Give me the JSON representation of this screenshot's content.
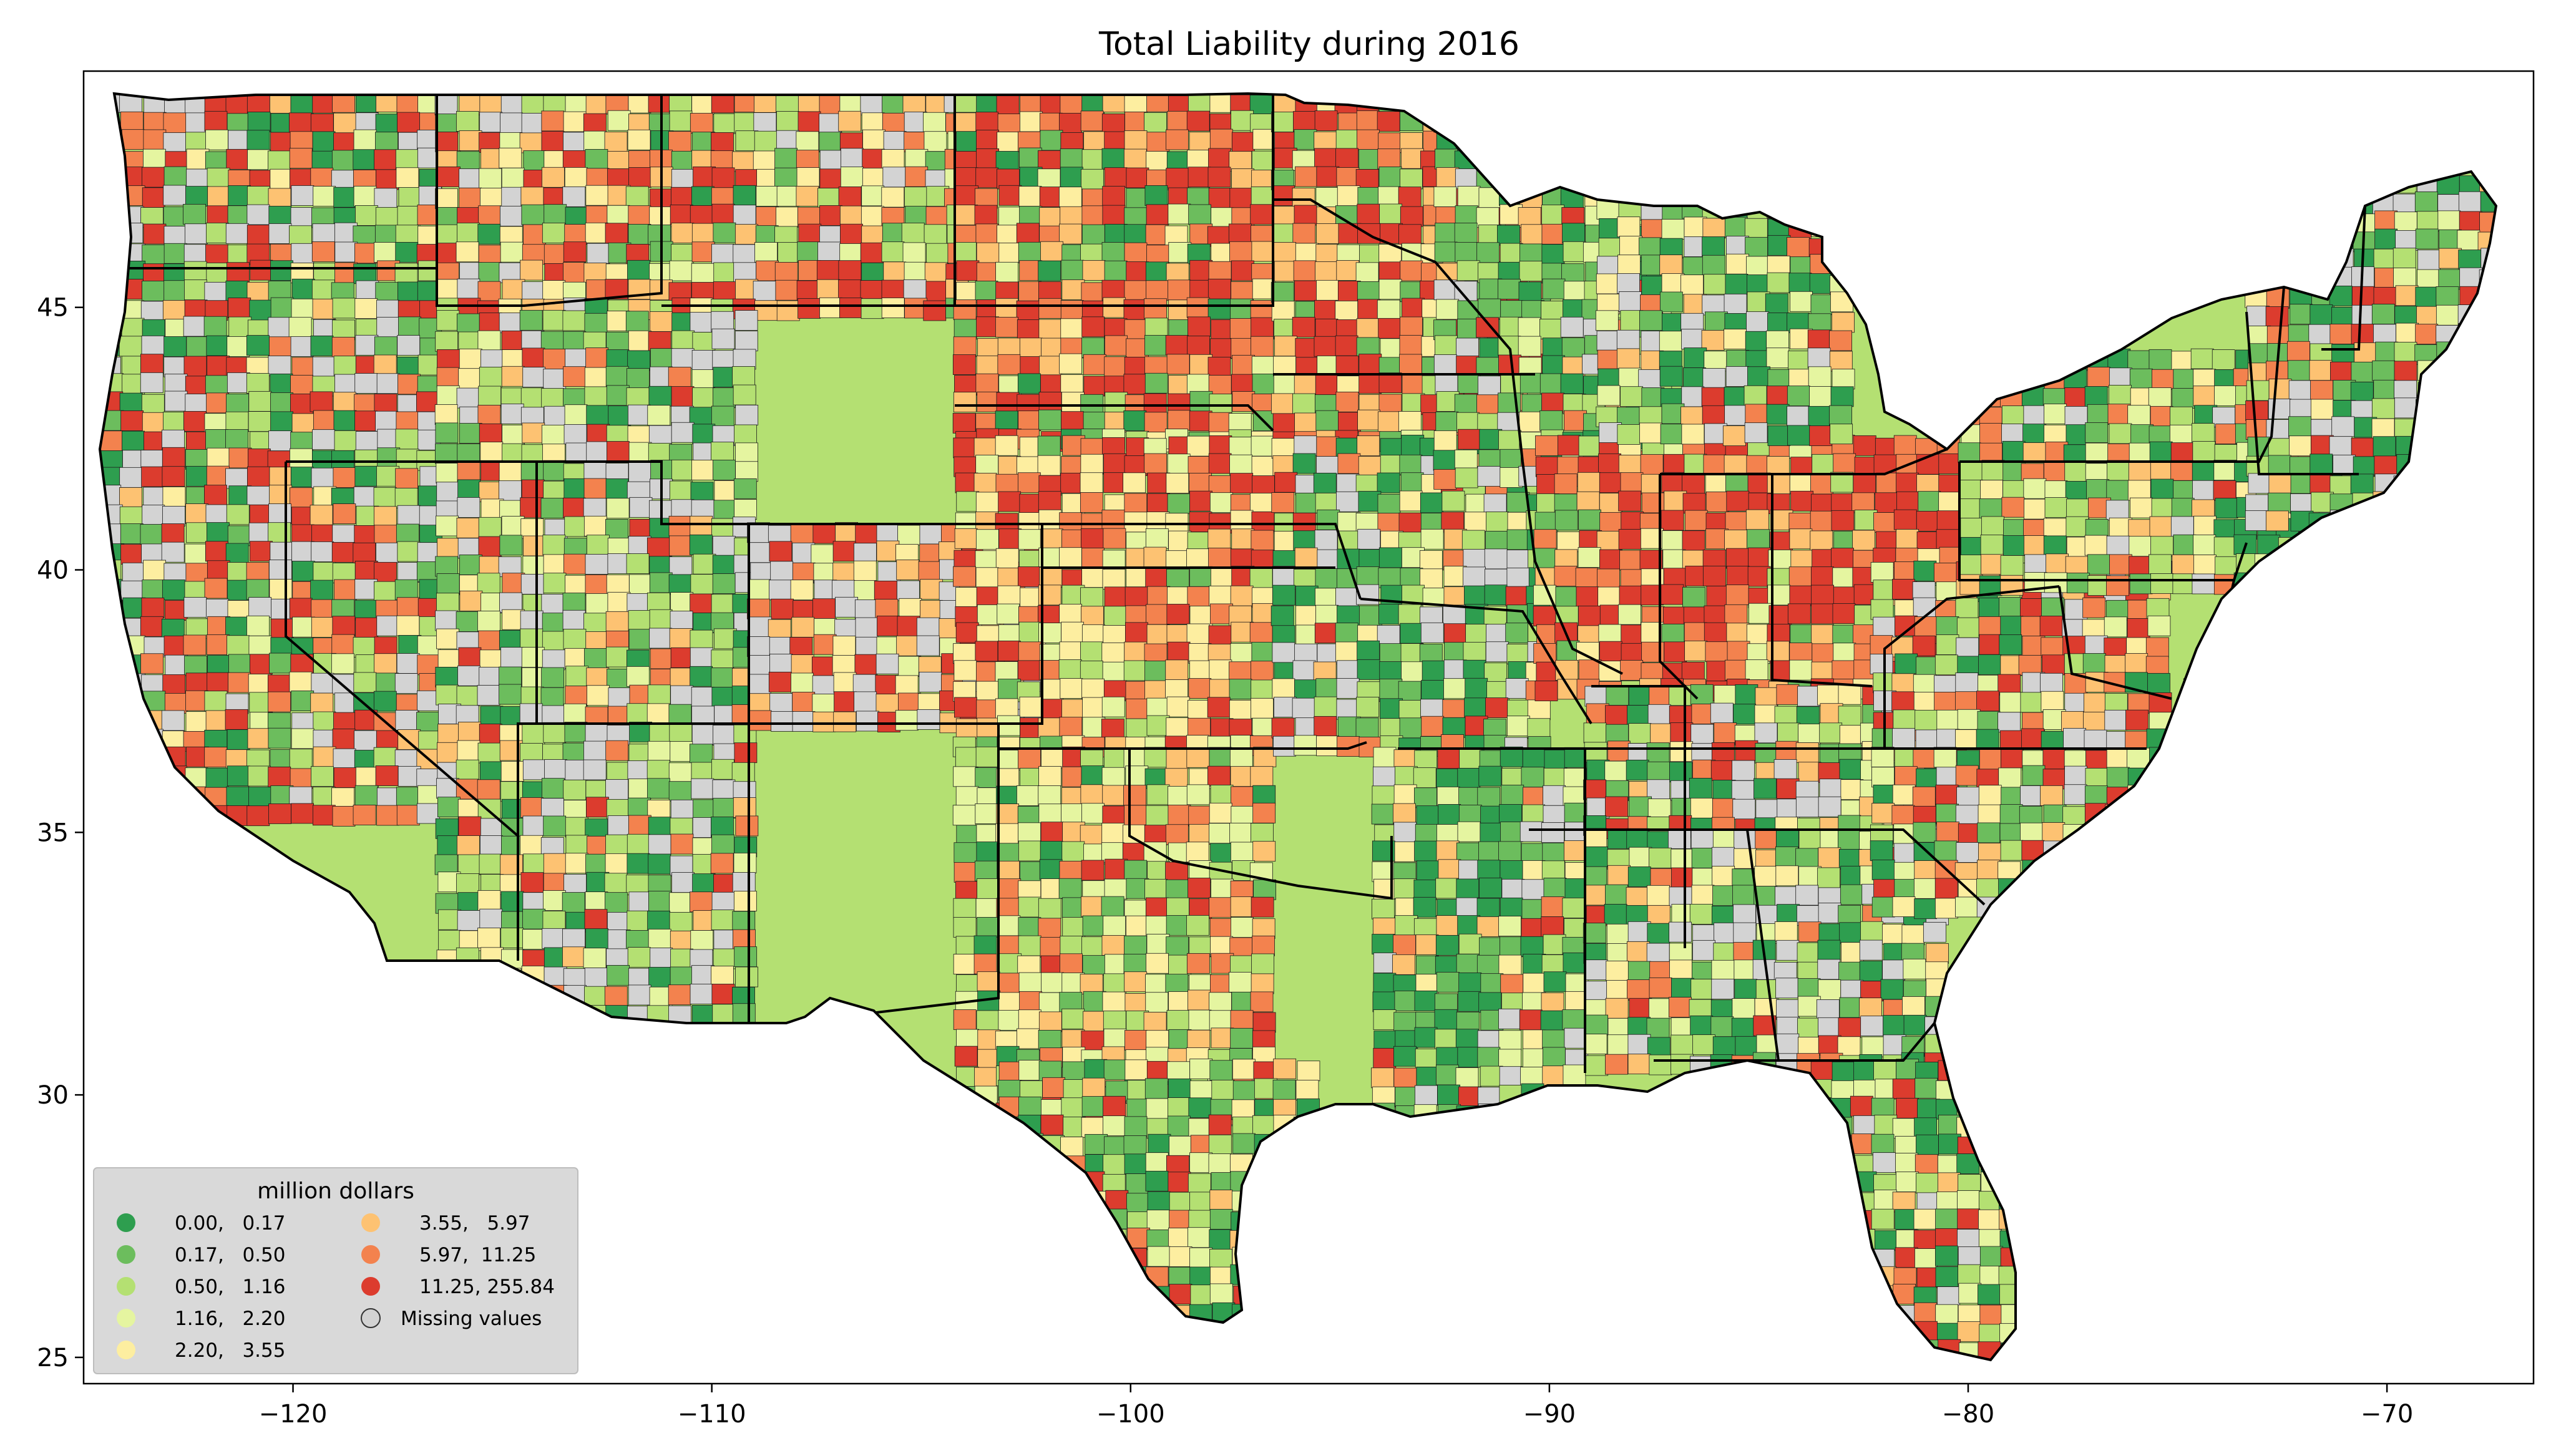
{
  "chart_data": {
    "type": "choropleth",
    "title": "Total Liability during 2016",
    "x_axis": {
      "range": [
        -125,
        -66.5
      ],
      "ticks": [
        -120,
        -110,
        -100,
        -90,
        -80,
        -70
      ],
      "tick_labels": [
        "−120",
        "−110",
        "−100",
        "−90",
        "−80",
        "−70"
      ]
    },
    "y_axis": {
      "range": [
        24.5,
        49.5
      ],
      "ticks": [
        25,
        30,
        35,
        40,
        45
      ],
      "tick_labels": [
        "25",
        "30",
        "35",
        "40",
        "45"
      ]
    },
    "legend": {
      "title": "million dollars",
      "placement": "lower-left",
      "entries": [
        {
          "label": "0.00,   0.17",
          "color": "#2e9e4f"
        },
        {
          "label": "0.17,   0.50",
          "color": "#6cbd5d"
        },
        {
          "label": "0.50,   1.16",
          "color": "#b4e072"
        },
        {
          "label": "1.16,   2.20",
          "color": "#e5f5a0"
        },
        {
          "label": "2.20,   3.55",
          "color": "#fdeea0"
        },
        {
          "label": "3.55,   5.97",
          "color": "#fdc272"
        },
        {
          "label": "5.97,  11.25",
          "color": "#f3824e"
        },
        {
          "label": "11.25, 255.84",
          "color": "#dc3c2e"
        },
        {
          "label": "Missing values",
          "color": "#d3d3d3"
        }
      ]
    },
    "missing_color": "#d3d3d3",
    "state_border_color": "#000000"
  }
}
